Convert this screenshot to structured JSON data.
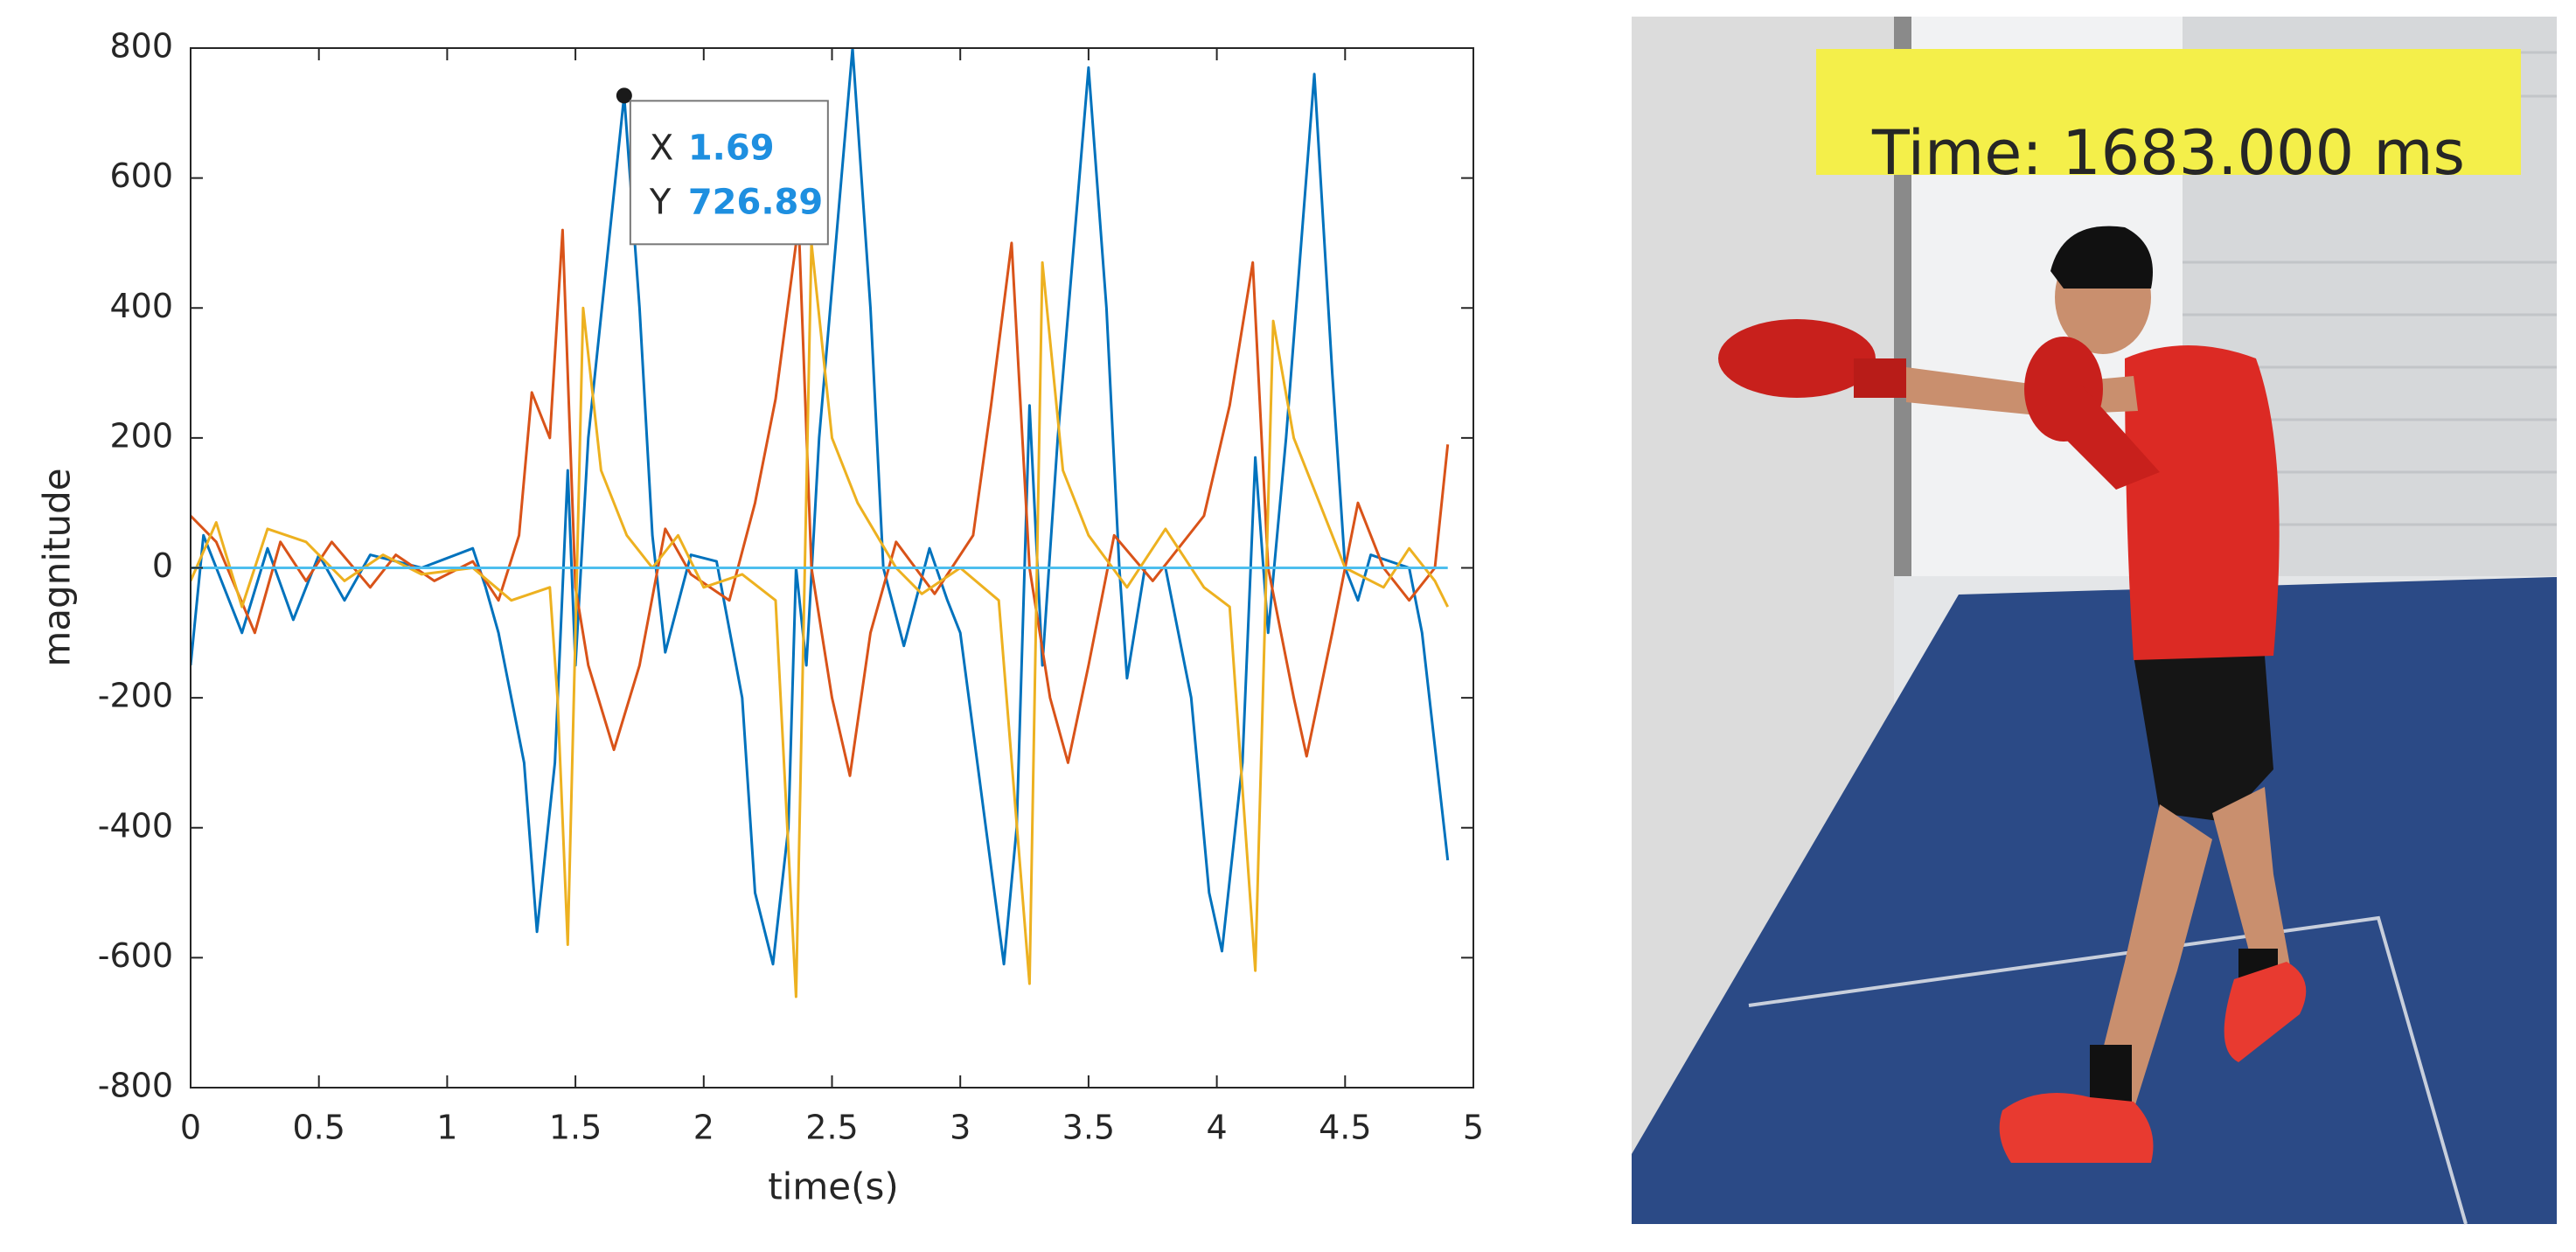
{
  "chart_data": {
    "type": "line",
    "xlabel": "time(s)",
    "ylabel": "magnitude",
    "xlim": [
      0,
      5
    ],
    "ylim": [
      -800,
      800
    ],
    "xticks": [
      0,
      0.5,
      1,
      1.5,
      2,
      2.5,
      3,
      3.5,
      4,
      4.5,
      5
    ],
    "yticks": [
      -800,
      -600,
      -400,
      -200,
      0,
      200,
      400,
      600,
      800
    ],
    "grid": false,
    "series": [
      {
        "color": "#0072bd",
        "x": [
          0,
          0.05,
          0.2,
          0.3,
          0.4,
          0.5,
          0.6,
          0.7,
          0.9,
          1.1,
          1.15,
          1.2,
          1.3,
          1.35,
          1.42,
          1.47,
          1.5,
          1.55,
          1.69,
          1.75,
          1.8,
          1.85,
          1.95,
          2.05,
          2.15,
          2.2,
          2.27,
          2.33,
          2.36,
          2.4,
          2.45,
          2.58,
          2.65,
          2.7,
          2.78,
          2.88,
          2.95,
          3.0,
          3.1,
          3.17,
          3.22,
          3.27,
          3.32,
          3.38,
          3.5,
          3.57,
          3.62,
          3.65,
          3.72,
          3.8,
          3.9,
          3.97,
          4.02,
          4.1,
          4.15,
          4.2,
          4.27,
          4.38,
          4.45,
          4.5,
          4.55,
          4.6,
          4.75,
          4.8,
          4.9
        ],
        "values": [
          -150,
          50,
          -100,
          30,
          -80,
          20,
          -50,
          20,
          0,
          30,
          -30,
          -100,
          -300,
          -560,
          -300,
          150,
          -150,
          200,
          726.89,
          400,
          50,
          -130,
          20,
          10,
          -200,
          -500,
          -610,
          -400,
          0,
          -150,
          200,
          800,
          400,
          0,
          -120,
          30,
          -50,
          -100,
          -400,
          -610,
          -400,
          250,
          -150,
          200,
          770,
          400,
          0,
          -170,
          0,
          0,
          -200,
          -500,
          -590,
          -300,
          170,
          -100,
          200,
          760,
          300,
          0,
          -50,
          20,
          0,
          -100,
          -450
        ]
      },
      {
        "color": "#d95319",
        "x": [
          0,
          0.1,
          0.25,
          0.35,
          0.45,
          0.55,
          0.7,
          0.8,
          0.95,
          1.1,
          1.2,
          1.28,
          1.33,
          1.4,
          1.45,
          1.5,
          1.55,
          1.65,
          1.75,
          1.85,
          1.95,
          2.1,
          2.2,
          2.28,
          2.37,
          2.42,
          2.5,
          2.57,
          2.65,
          2.75,
          2.9,
          3.05,
          3.12,
          3.2,
          3.27,
          3.35,
          3.42,
          3.5,
          3.6,
          3.75,
          3.95,
          4.05,
          4.14,
          4.2,
          4.3,
          4.35,
          4.45,
          4.55,
          4.65,
          4.75,
          4.85,
          4.9
        ],
        "values": [
          80,
          40,
          -100,
          40,
          -20,
          40,
          -30,
          20,
          -20,
          10,
          -50,
          50,
          270,
          200,
          520,
          -30,
          -150,
          -280,
          -150,
          60,
          -10,
          -50,
          100,
          260,
          530,
          0,
          -200,
          -320,
          -100,
          40,
          -40,
          50,
          250,
          500,
          0,
          -200,
          -300,
          -150,
          50,
          -20,
          80,
          250,
          470,
          0,
          -200,
          -290,
          -100,
          100,
          0,
          -50,
          0,
          190
        ]
      },
      {
        "color": "#edb120",
        "x": [
          0,
          0.1,
          0.2,
          0.3,
          0.45,
          0.6,
          0.75,
          0.9,
          1.1,
          1.25,
          1.4,
          1.43,
          1.47,
          1.5,
          1.53,
          1.6,
          1.7,
          1.8,
          1.9,
          2.0,
          2.15,
          2.28,
          2.36,
          2.42,
          2.5,
          2.6,
          2.75,
          2.85,
          3.0,
          3.15,
          3.27,
          3.32,
          3.4,
          3.5,
          3.65,
          3.8,
          3.95,
          4.05,
          4.15,
          4.22,
          4.3,
          4.4,
          4.5,
          4.65,
          4.75,
          4.85,
          4.9
        ],
        "values": [
          -20,
          70,
          -60,
          60,
          40,
          -20,
          20,
          -10,
          0,
          -50,
          -30,
          -200,
          -580,
          -100,
          400,
          150,
          50,
          0,
          50,
          -30,
          -10,
          -50,
          -660,
          500,
          200,
          100,
          0,
          -40,
          0,
          -50,
          -640,
          470,
          150,
          50,
          -30,
          60,
          -30,
          -60,
          -620,
          380,
          200,
          100,
          0,
          -30,
          30,
          -20,
          -60
        ]
      },
      {
        "color": "#4dbeee",
        "x": [
          0,
          4.9
        ],
        "values": [
          0,
          0
        ]
      }
    ],
    "datatip": {
      "x_label": "X",
      "x": 1.69,
      "y_label": "Y",
      "y": 726.89
    }
  },
  "video_frame": {
    "overlay_text": "Time: 1683.000 ms"
  }
}
